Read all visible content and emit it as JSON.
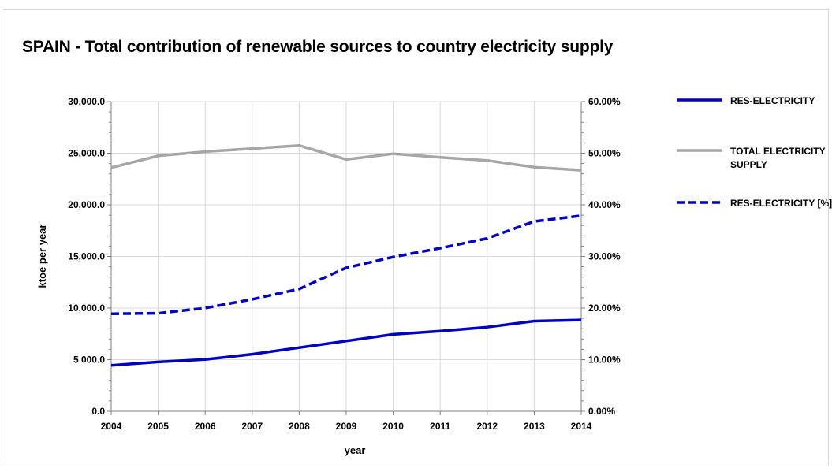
{
  "chart_data": {
    "type": "line",
    "title": "SPAIN - Total contribution of renewable sources to country electricity supply",
    "xlabel": "year",
    "ylabel": "ktoe per year",
    "x": [
      "2004",
      "2005",
      "2006",
      "2007",
      "2008",
      "2009",
      "2010",
      "2011",
      "2012",
      "2013",
      "2014"
    ],
    "ylim": [
      0,
      30000
    ],
    "y_ticks": [
      "0.0",
      "5 000.0",
      "10,000.0",
      "15,000.0",
      "20,000.0",
      "25,000.0",
      "30,000.0"
    ],
    "y2lim": [
      0,
      60
    ],
    "y2_ticks": [
      "0.00%",
      "10.00%",
      "20.00%",
      "30.00%",
      "40.00%",
      "50.00%",
      "60.00%"
    ],
    "grid": true,
    "legend_position": "right",
    "series": [
      {
        "name": "RES-ELECTRICITY",
        "axis": "left",
        "style": "solid",
        "color": "#0000c0",
        "values": [
          4450,
          4780,
          5020,
          5530,
          6170,
          6810,
          7450,
          7760,
          8150,
          8740,
          8850
        ]
      },
      {
        "name": "TOTAL ELECTRICITY SUPPLY",
        "axis": "left",
        "style": "solid",
        "color": "#a6a6a6",
        "values": [
          23600,
          24750,
          25150,
          25450,
          25750,
          24400,
          24950,
          24600,
          24300,
          23650,
          23350
        ]
      },
      {
        "name": "RES-ELECTRICITY [%]",
        "axis": "right",
        "style": "dashed",
        "color": "#0000c0",
        "values": [
          18.9,
          19.0,
          20.0,
          21.7,
          23.7,
          27.8,
          29.9,
          31.6,
          33.5,
          36.8,
          37.9
        ]
      }
    ]
  }
}
